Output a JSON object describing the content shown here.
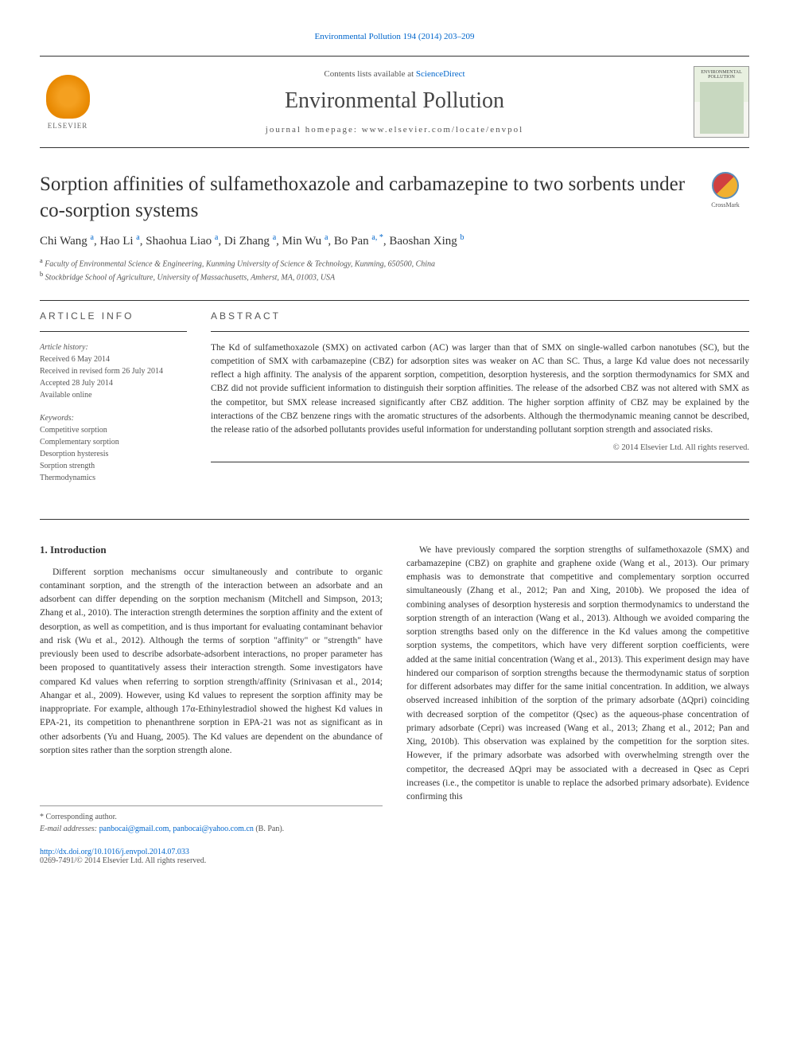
{
  "header": {
    "citation": "Environmental Pollution 194 (2014) 203–209",
    "contents_prefix": "Contents lists available at ",
    "contents_link": "ScienceDirect",
    "journal_title": "Environmental Pollution",
    "homepage_prefix": "journal homepage: ",
    "homepage": "www.elsevier.com/locate/envpol",
    "elsevier_label": "ELSEVIER",
    "cover_title": "ENVIRONMENTAL POLLUTION"
  },
  "article": {
    "title": "Sorption affinities of sulfamethoxazole and carbamazepine to two sorbents under co-sorption systems",
    "crossmark_label": "CrossMark",
    "authors_html": "Chi Wang <sup>a</sup>, Hao Li <sup>a</sup>, Shaohua Liao <sup>a</sup>, Di Zhang <sup>a</sup>, Min Wu <sup>a</sup>, Bo Pan <sup>a, *</sup>, Baoshan Xing <sup>b</sup>",
    "affiliations": {
      "a": "Faculty of Environmental Science & Engineering, Kunming University of Science & Technology, Kunming, 650500, China",
      "b": "Stockbridge School of Agriculture, University of Massachusetts, Amherst, MA, 01003, USA"
    }
  },
  "info": {
    "header": "ARTICLE INFO",
    "history_label": "Article history:",
    "received": "Received 6 May 2014",
    "revised": "Received in revised form 26 July 2014",
    "accepted": "Accepted 28 July 2014",
    "available": "Available online",
    "keywords_label": "Keywords:",
    "keywords": [
      "Competitive sorption",
      "Complementary sorption",
      "Desorption hysteresis",
      "Sorption strength",
      "Thermodynamics"
    ]
  },
  "abstract": {
    "header": "ABSTRACT",
    "text": "The Kd of sulfamethoxazole (SMX) on activated carbon (AC) was larger than that of SMX on single-walled carbon nanotubes (SC), but the competition of SMX with carbamazepine (CBZ) for adsorption sites was weaker on AC than SC. Thus, a large Kd value does not necessarily reflect a high affinity. The analysis of the apparent sorption, competition, desorption hysteresis, and the sorption thermodynamics for SMX and CBZ did not provide sufficient information to distinguish their sorption affinities. The release of the adsorbed CBZ was not altered with SMX as the competitor, but SMX release increased significantly after CBZ addition. The higher sorption affinity of CBZ may be explained by the interactions of the CBZ benzene rings with the aromatic structures of the adsorbents. Although the thermodynamic meaning cannot be described, the release ratio of the adsorbed pollutants provides useful information for understanding pollutant sorption strength and associated risks.",
    "copyright": "© 2014 Elsevier Ltd. All rights reserved."
  },
  "body": {
    "section_title": "1. Introduction",
    "col1_p1": "Different sorption mechanisms occur simultaneously and contribute to organic contaminant sorption, and the strength of the interaction between an adsorbate and an adsorbent can differ depending on the sorption mechanism (Mitchell and Simpson, 2013; Zhang et al., 2010). The interaction strength determines the sorption affinity and the extent of desorption, as well as competition, and is thus important for evaluating contaminant behavior and risk (Wu et al., 2012). Although the terms of sorption \"affinity\" or \"strength\" have previously been used to describe adsorbate-adsorbent interactions, no proper parameter has been proposed to quantitatively assess their interaction strength. Some investigators have compared Kd values when referring to sorption strength/affinity (Srinivasan et al., 2014; Ahangar et al., 2009). However, using Kd values to represent the sorption affinity may be inappropriate. For example, although 17α-Ethinylestradiol showed the highest Kd values in EPA-21, its competition to phenanthrene sorption in EPA-21 was not as significant as in other adsorbents (Yu and Huang, 2005). The Kd values are dependent on the abundance of sorption sites rather than the sorption strength alone.",
    "col2_p1": "We have previously compared the sorption strengths of sulfamethoxazole (SMX) and carbamazepine (CBZ) on graphite and graphene oxide (Wang et al., 2013). Our primary emphasis was to demonstrate that competitive and complementary sorption occurred simultaneously (Zhang et al., 2012; Pan and Xing, 2010b). We proposed the idea of combining analyses of desorption hysteresis and sorption thermodynamics to understand the sorption strength of an interaction (Wang et al., 2013). Although we avoided comparing the sorption strengths based only on the difference in the Kd values among the competitive sorption systems, the competitors, which have very different sorption coefficients, were added at the same initial concentration (Wang et al., 2013). This experiment design may have hindered our comparison of sorption strengths because the thermodynamic status of sorption for different adsorbates may differ for the same initial concentration. In addition, we always observed increased inhibition of the sorption of the primary adsorbate (ΔQpri) coinciding with decreased sorption of the competitor (Qsec) as the aqueous-phase concentration of primary adsorbate (Cepri) was increased (Wang et al., 2013; Zhang et al., 2012; Pan and Xing, 2010b). This observation was explained by the competition for the sorption sites. However, if the primary adsorbate was adsorbed with overwhelming strength over the competitor, the decreased ΔQpri may be associated with a decreased in Qsec as Cepri increases (i.e., the competitor is unable to replace the adsorbed primary adsorbate). Evidence confirming this"
  },
  "footnotes": {
    "corresponding": "* Corresponding author.",
    "email_label": "E-mail addresses: ",
    "emails": "panbocai@gmail.com, panbocai@yahoo.com.cn",
    "email_suffix": " (B. Pan)."
  },
  "footer": {
    "doi": "http://dx.doi.org/10.1016/j.envpol.2014.07.033",
    "issn": "0269-7491/© 2014 Elsevier Ltd. All rights reserved."
  },
  "colors": {
    "link": "#0066cc",
    "text": "#333333",
    "muted": "#555555",
    "border": "#333333"
  }
}
